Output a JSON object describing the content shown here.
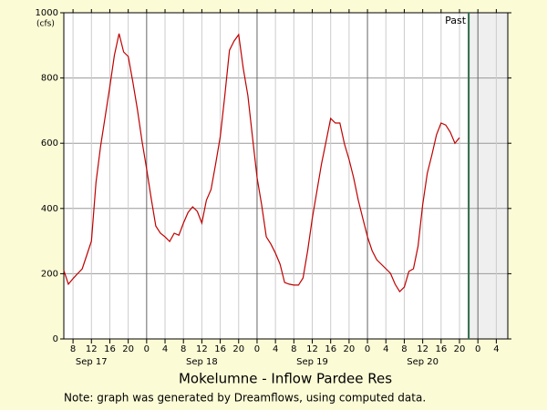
{
  "chart_data": {
    "type": "line",
    "title": "Mokelumne - Inflow Pardee Res",
    "note": "Note: graph was generated by Dreamflows, using computed data.",
    "y_unit_label": "(cfs)",
    "x": [
      6,
      7,
      8,
      9,
      10,
      11,
      12,
      13,
      14,
      15,
      16,
      17,
      18,
      19,
      20,
      21,
      22,
      23,
      24,
      25,
      26,
      27,
      28,
      29,
      30,
      31,
      32,
      33,
      34,
      35,
      36,
      37,
      38,
      39,
      40,
      41,
      42,
      43,
      44,
      45,
      46,
      47,
      48,
      49,
      50,
      51,
      52,
      53,
      54,
      55,
      56,
      57,
      58,
      59,
      60,
      61,
      62,
      63,
      64,
      65,
      66,
      67,
      68,
      69,
      70,
      71,
      72,
      73,
      74,
      75,
      76,
      77,
      78,
      79,
      80,
      81,
      82,
      83,
      84,
      85,
      86,
      87,
      88,
      89,
      90,
      91,
      92
    ],
    "series": [
      {
        "color": "#c00000",
        "values": [
          210,
          168,
          185,
          200,
          215,
          257,
          300,
          480,
          592,
          682,
          774,
          870,
          936,
          880,
          866,
          788,
          704,
          606,
          522,
          430,
          346,
          324,
          313,
          299,
          324,
          318,
          355,
          388,
          405,
          391,
          355,
          425,
          458,
          536,
          620,
          746,
          885,
          913,
          933,
          830,
          746,
          620,
          494,
          411,
          313,
          291,
          263,
          229,
          173,
          168,
          165,
          165,
          187,
          271,
          369,
          453,
          536,
          606,
          676,
          662,
          662,
          598,
          550,
          494,
          425,
          369,
          313,
          271,
          243,
          229,
          215,
          201,
          168,
          145,
          159,
          207,
          215,
          285,
          411,
          508,
          564,
          626,
          662,
          656,
          634,
          600,
          617
        ]
      }
    ],
    "xlim": [
      6,
      102.5
    ],
    "xticks": [
      {
        "value": 8,
        "label": "8"
      },
      {
        "value": 12,
        "label": "12"
      },
      {
        "value": 16,
        "label": "16"
      },
      {
        "value": 20,
        "label": "20"
      },
      {
        "value": 24,
        "label": "0"
      },
      {
        "value": 28,
        "label": "4"
      },
      {
        "value": 32,
        "label": "8"
      },
      {
        "value": 36,
        "label": "12"
      },
      {
        "value": 40,
        "label": "16"
      },
      {
        "value": 44,
        "label": "20"
      },
      {
        "value": 48,
        "label": "0"
      },
      {
        "value": 52,
        "label": "4"
      },
      {
        "value": 56,
        "label": "8"
      },
      {
        "value": 60,
        "label": "12"
      },
      {
        "value": 64,
        "label": "16"
      },
      {
        "value": 68,
        "label": "20"
      },
      {
        "value": 72,
        "label": "0"
      },
      {
        "value": 76,
        "label": "4"
      },
      {
        "value": 80,
        "label": "8"
      },
      {
        "value": 84,
        "label": "12"
      },
      {
        "value": 88,
        "label": "16"
      },
      {
        "value": 92,
        "label": "20"
      },
      {
        "value": 96,
        "label": "0"
      },
      {
        "value": 100,
        "label": "4"
      }
    ],
    "day_labels": [
      {
        "value": 12,
        "label": "Sep 17"
      },
      {
        "value": 36,
        "label": "Sep 18"
      },
      {
        "value": 60,
        "label": "Sep 19"
      },
      {
        "value": 84,
        "label": "Sep 20"
      }
    ],
    "ylim": [
      0,
      1000
    ],
    "yticks": [
      0,
      200,
      400,
      600,
      800,
      1000
    ],
    "grid": true,
    "past_marker": {
      "x": 94,
      "label": "Past",
      "color": "#2e6b4a"
    }
  }
}
